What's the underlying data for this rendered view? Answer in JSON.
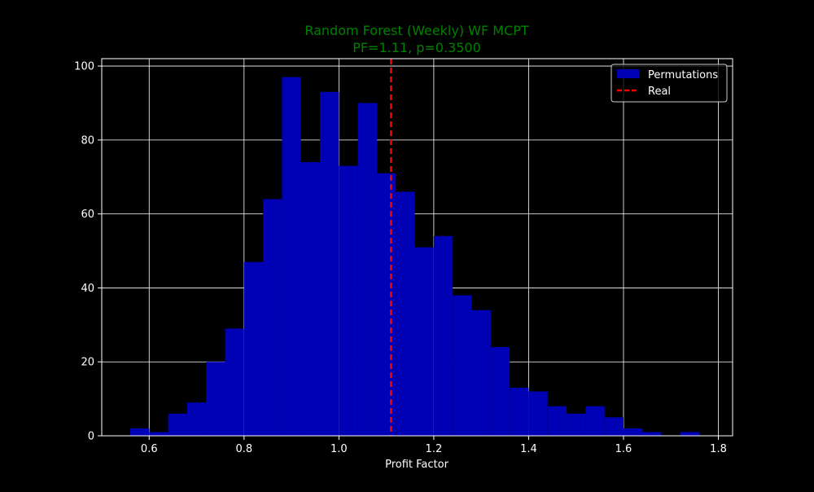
{
  "chart_data": {
    "type": "histogram",
    "title_line1": "Random Forest (Weekly) WF MCPT",
    "title_line2": "PF=1.11, p=0.3500",
    "xlabel": "Profit Factor",
    "ylabel": "",
    "xlim": [
      0.5,
      1.83
    ],
    "ylim": [
      0,
      102
    ],
    "grid": true,
    "x_ticks": [
      0.6,
      0.8,
      1.0,
      1.2,
      1.4,
      1.6,
      1.8
    ],
    "x_tick_labels": [
      "0.6",
      "0.8",
      "1.0",
      "1.2",
      "1.4",
      "1.6",
      "1.8"
    ],
    "y_ticks": [
      0,
      20,
      40,
      60,
      80,
      100
    ],
    "y_tick_labels": [
      "0",
      "20",
      "40",
      "60",
      "80",
      "100"
    ],
    "bins": [
      {
        "x0": 0.56,
        "x1": 0.6,
        "count": 2
      },
      {
        "x0": 0.6,
        "x1": 0.64,
        "count": 1
      },
      {
        "x0": 0.64,
        "x1": 0.68,
        "count": 6
      },
      {
        "x0": 0.68,
        "x1": 0.72,
        "count": 9
      },
      {
        "x0": 0.72,
        "x1": 0.76,
        "count": 20
      },
      {
        "x0": 0.76,
        "x1": 0.8,
        "count": 29
      },
      {
        "x0": 0.8,
        "x1": 0.84,
        "count": 47
      },
      {
        "x0": 0.84,
        "x1": 0.88,
        "count": 64
      },
      {
        "x0": 0.88,
        "x1": 0.92,
        "count": 97
      },
      {
        "x0": 0.92,
        "x1": 0.96,
        "count": 74
      },
      {
        "x0": 0.96,
        "x1": 1.0,
        "count": 93
      },
      {
        "x0": 1.0,
        "x1": 1.04,
        "count": 73
      },
      {
        "x0": 1.04,
        "x1": 1.08,
        "count": 90
      },
      {
        "x0": 1.08,
        "x1": 1.12,
        "count": 71
      },
      {
        "x0": 1.12,
        "x1": 1.16,
        "count": 66
      },
      {
        "x0": 1.16,
        "x1": 1.2,
        "count": 51
      },
      {
        "x0": 1.2,
        "x1": 1.24,
        "count": 54
      },
      {
        "x0": 1.24,
        "x1": 1.28,
        "count": 38
      },
      {
        "x0": 1.28,
        "x1": 1.32,
        "count": 34
      },
      {
        "x0": 1.32,
        "x1": 1.36,
        "count": 24
      },
      {
        "x0": 1.36,
        "x1": 1.4,
        "count": 13
      },
      {
        "x0": 1.4,
        "x1": 1.44,
        "count": 12
      },
      {
        "x0": 1.44,
        "x1": 1.48,
        "count": 8
      },
      {
        "x0": 1.48,
        "x1": 1.52,
        "count": 6
      },
      {
        "x0": 1.52,
        "x1": 1.56,
        "count": 8
      },
      {
        "x0": 1.56,
        "x1": 1.6,
        "count": 5
      },
      {
        "x0": 1.6,
        "x1": 1.64,
        "count": 2
      },
      {
        "x0": 1.64,
        "x1": 1.68,
        "count": 1
      },
      {
        "x0": 1.68,
        "x1": 1.72,
        "count": 0
      },
      {
        "x0": 1.72,
        "x1": 1.76,
        "count": 1
      }
    ],
    "real_value": 1.11,
    "legend": {
      "placement": "top-right",
      "entries": [
        {
          "label": "Permutations",
          "kind": "patch",
          "color": "#0000b5"
        },
        {
          "label": "Real",
          "kind": "dashed-line",
          "color": "#ff0000"
        }
      ]
    },
    "colors": {
      "background": "#000000",
      "bars": "#0000b5",
      "real_line": "#ff0000",
      "title": "#008000",
      "axis": "#ffffff",
      "grid": "#ffffff",
      "text": "#ffffff"
    }
  }
}
